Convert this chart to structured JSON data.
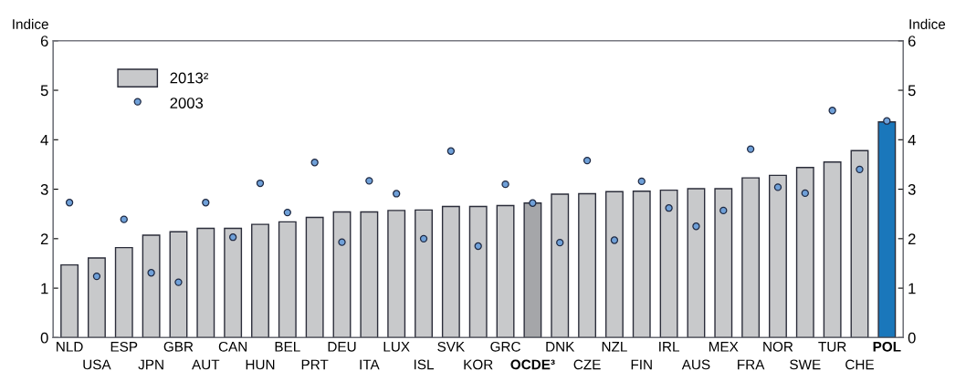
{
  "chart_data": {
    "type": "bar",
    "categories": [
      "NLD",
      "USA",
      "ESP",
      "JPN",
      "GBR",
      "AUT",
      "CAN",
      "HUN",
      "BEL",
      "PRT",
      "DEU",
      "ITA",
      "LUX",
      "ISL",
      "SVK",
      "KOR",
      "GRC",
      "OCDE³",
      "DNK",
      "CZE",
      "NZL",
      "FIN",
      "IRL",
      "AUS",
      "MEX",
      "FRA",
      "NOR",
      "SWE",
      "TUR",
      "CHE",
      "POL"
    ],
    "series": [
      {
        "name": "2013²",
        "color": "#c8c9cb",
        "colors": [
          "#c8c9cb",
          "#c8c9cb",
          "#c8c9cb",
          "#c8c9cb",
          "#c8c9cb",
          "#c8c9cb",
          "#c8c9cb",
          "#c8c9cb",
          "#c8c9cb",
          "#c8c9cb",
          "#c8c9cb",
          "#c8c9cb",
          "#c8c9cb",
          "#c8c9cb",
          "#c8c9cb",
          "#c8c9cb",
          "#c8c9cb",
          "#a5a6a9",
          "#c8c9cb",
          "#c8c9cb",
          "#c8c9cb",
          "#c8c9cb",
          "#c8c9cb",
          "#c8c9cb",
          "#c8c9cb",
          "#c8c9cb",
          "#c8c9cb",
          "#c8c9cb",
          "#c8c9cb",
          "#c8c9cb",
          "#1a77bb"
        ],
        "values": [
          1.47,
          1.61,
          1.82,
          2.07,
          2.14,
          2.21,
          2.21,
          2.29,
          2.34,
          2.43,
          2.54,
          2.54,
          2.57,
          2.58,
          2.65,
          2.65,
          2.67,
          2.72,
          2.9,
          2.91,
          2.95,
          2.96,
          2.98,
          3.01,
          3.01,
          3.23,
          3.28,
          3.44,
          3.55,
          3.78,
          4.36
        ]
      },
      {
        "name": "2003",
        "type": "scatter",
        "color": "#6fa0d8",
        "marker": "circle",
        "values": [
          2.73,
          1.24,
          2.39,
          1.31,
          1.12,
          2.73,
          2.03,
          3.12,
          2.53,
          3.54,
          1.93,
          3.17,
          2.91,
          2.0,
          3.77,
          1.85,
          3.1,
          2.72,
          1.92,
          3.58,
          1.97,
          3.16,
          2.62,
          2.25,
          2.57,
          3.81,
          3.04,
          2.92,
          4.59,
          3.4,
          4.38
        ]
      }
    ],
    "ylabel": "Indice",
    "y2label": "Indice",
    "ylim": [
      0,
      6
    ],
    "yticks": [
      0,
      1,
      2,
      3,
      4,
      5,
      6
    ],
    "y2lim": [
      0,
      6
    ],
    "y2ticks": [
      0,
      1,
      2,
      3,
      4,
      5,
      6
    ],
    "grid": false,
    "legend": "top left"
  }
}
